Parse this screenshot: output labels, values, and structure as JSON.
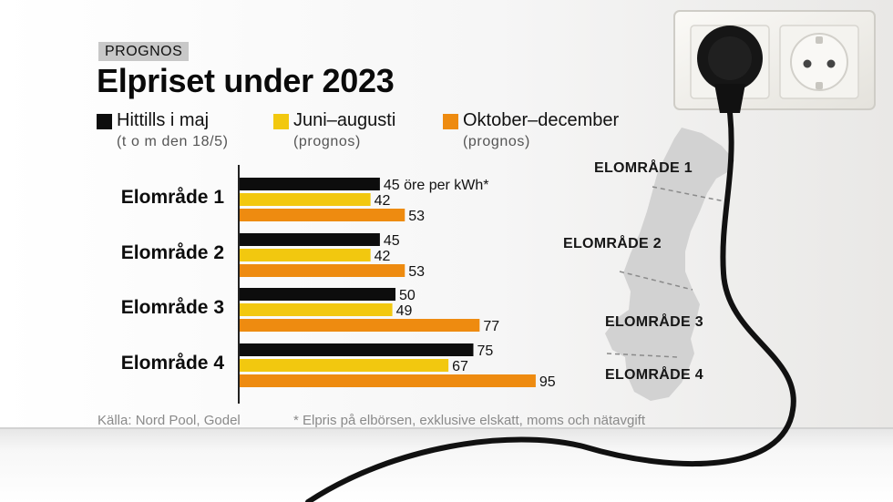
{
  "kicker": "PROGNOS",
  "title": "Elpriset under 2023",
  "legend": [
    {
      "label": "Hittills i maj",
      "sub": "(t o m den 18/5)",
      "color": "#0d0d0d"
    },
    {
      "label": "Juni–augusti",
      "sub": "(prognos)",
      "color": "#f2c80f"
    },
    {
      "label": "Oktober–december",
      "sub": "(prognos)",
      "color": "#ee8b10"
    }
  ],
  "chart_data": {
    "type": "bar",
    "orientation": "horizontal",
    "categories": [
      "Elområde 1",
      "Elområde 2",
      "Elområde 3",
      "Elområde 4"
    ],
    "series": [
      {
        "name": "Hittills i maj",
        "values": [
          45,
          45,
          50,
          75
        ]
      },
      {
        "name": "Juni–augusti",
        "values": [
          42,
          42,
          49,
          67
        ]
      },
      {
        "name": "Oktober–december",
        "values": [
          53,
          53,
          77,
          95
        ]
      }
    ],
    "unit_annotation": "45 öre per kWh*",
    "title": "Elpriset under 2023",
    "xlabel": "",
    "ylabel": "",
    "xlim": [
      0,
      100
    ]
  },
  "source": "Källa: Nord Pool, Godel",
  "footnote": "* Elpris på elbörsen, exklusive elskatt, moms och nätavgift",
  "map": {
    "regions": [
      "ELOMRÅDE 1",
      "ELOMRÅDE 2",
      "ELOMRÅDE 3",
      "ELOMRÅDE 4"
    ]
  }
}
